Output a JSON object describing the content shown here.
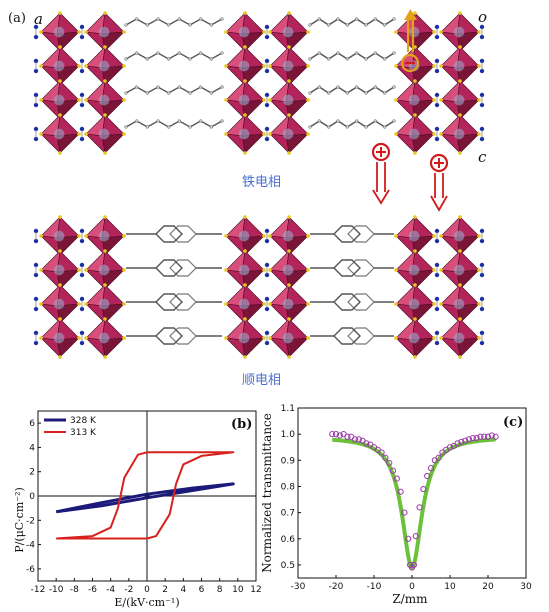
{
  "panel_a": {
    "label": "(a)",
    "axis_a": "a",
    "axis_o": "o",
    "axis_c": "c",
    "phase_ferro": "铁电相",
    "phase_para": "顺电相",
    "minus": "−",
    "plus": "+",
    "colors": {
      "octa_dark": "#7a1538",
      "octa_mid": "#b3245a",
      "octa_light": "#d94f7c",
      "ligand": "#555555",
      "n_atom": "#1a2fa8",
      "corner": "#e8c81e",
      "arrow": "#d01c1c",
      "arrow_up": "#e3a21a"
    }
  },
  "panel_b": {
    "label": "(b)",
    "ylabel": "P/(μC·cm⁻²)",
    "xlabel": "E/(kV·cm⁻¹)",
    "colors": {
      "s328": "#1b1a7a",
      "s313": "#d8201e"
    }
  },
  "panel_c": {
    "label": "(c)",
    "ylabel": "Normalized transmittance",
    "xlabel": "Z/mm",
    "colors": {
      "fit": "#6cc13a",
      "points": "#9b3aa8"
    }
  },
  "chart_data": [
    {
      "type": "line",
      "panel": "b",
      "xlabel": "E/(kV·cm⁻¹)",
      "ylabel": "P/(μC·cm⁻²)",
      "xlim": [
        -12,
        12
      ],
      "ylim": [
        -7,
        7
      ],
      "xticks": [
        -12,
        -10,
        -8,
        -6,
        -4,
        -2,
        0,
        2,
        4,
        6,
        8,
        10,
        12
      ],
      "yticks": [
        -6,
        -4,
        -2,
        0,
        2,
        4,
        6
      ],
      "legend": "top-left",
      "series": [
        {
          "name": "328 K",
          "color_key": "s328",
          "x": [
            -10,
            -5,
            0,
            5,
            9.5,
            5,
            0,
            -5,
            -10
          ],
          "y": [
            -1.3,
            -0.8,
            -0.15,
            0.45,
            1.0,
            0.65,
            0.15,
            -0.55,
            -1.3
          ]
        },
        {
          "name": "313 K",
          "color_key": "s313",
          "x": [
            -10,
            -6,
            -4,
            -3.2,
            -2.5,
            -1,
            0,
            5,
            9.5,
            6,
            4,
            3.2,
            2.5,
            1,
            0,
            -5,
            -10
          ],
          "y": [
            -3.5,
            -3.3,
            -2.6,
            -1.0,
            1.5,
            3.4,
            3.6,
            3.6,
            3.6,
            3.3,
            2.6,
            1.0,
            -1.5,
            -3.3,
            -3.5,
            -3.5,
            -3.5
          ]
        }
      ]
    },
    {
      "type": "scatter",
      "panel": "c",
      "xlabel": "Z/mm",
      "ylabel": "Normalized transmittance",
      "xlim": [
        -30,
        30
      ],
      "ylim": [
        0.45,
        1.1
      ],
      "xticks": [
        -30,
        -20,
        -10,
        0,
        10,
        20,
        30
      ],
      "yticks": [
        0.5,
        0.6,
        0.7,
        0.8,
        0.9,
        1.0,
        1.1
      ],
      "points": {
        "x": [
          -21,
          -20,
          -19,
          -18,
          -17,
          -16,
          -15,
          -14,
          -13,
          -12,
          -11,
          -10,
          -9,
          -8,
          -7,
          -6,
          -5,
          -4,
          -3,
          -2,
          -1,
          -0.5,
          0,
          0.5,
          1,
          2,
          3,
          4,
          5,
          6,
          7,
          8,
          9,
          10,
          11,
          12,
          13,
          14,
          15,
          16,
          17,
          18,
          19,
          20,
          21,
          22
        ],
        "y": [
          1.0,
          1.0,
          0.995,
          1.0,
          0.99,
          0.99,
          0.98,
          0.98,
          0.975,
          0.965,
          0.96,
          0.95,
          0.94,
          0.93,
          0.91,
          0.89,
          0.86,
          0.83,
          0.78,
          0.7,
          0.6,
          0.5,
          0.49,
          0.5,
          0.61,
          0.72,
          0.79,
          0.84,
          0.87,
          0.9,
          0.91,
          0.93,
          0.94,
          0.95,
          0.955,
          0.965,
          0.97,
          0.975,
          0.98,
          0.985,
          0.985,
          0.99,
          0.99,
          0.99,
          0.995,
          0.99
        ]
      },
      "fit": {
        "type": "lorentzian",
        "baseline": 0.99,
        "depth": 0.5,
        "width_mm": 3.2
      }
    }
  ]
}
